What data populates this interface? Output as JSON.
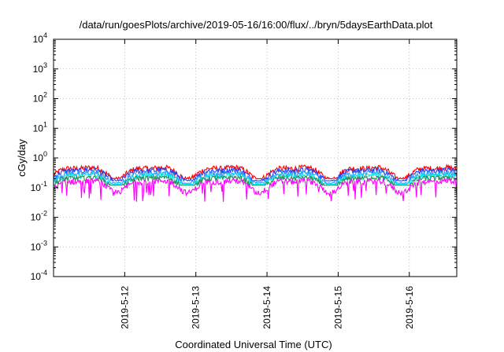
{
  "chart_data": {
    "type": "line",
    "title": "/data/run/goesPlots/archive/2019-05-16/16:00/flux/../bryn/5daysEarthData.plot",
    "xlabel": "Coordinated Universal Time (UTC)",
    "ylabel": "cGy/day",
    "yscale": "log",
    "ylim": [
      0.0001,
      10000
    ],
    "xlim": [
      "2019-05-11 00:00",
      "2019-05-16 16:00"
    ],
    "grid": true,
    "legend": "none",
    "y_ticks": [
      {
        "value": 0.0001,
        "base": "10",
        "exp": "-4"
      },
      {
        "value": 0.001,
        "base": "10",
        "exp": "-3"
      },
      {
        "value": 0.01,
        "base": "10",
        "exp": "-2"
      },
      {
        "value": 0.1,
        "base": "10",
        "exp": "-1"
      },
      {
        "value": 1,
        "base": "10",
        "exp": "0"
      },
      {
        "value": 10,
        "base": "10",
        "exp": "1"
      },
      {
        "value": 100,
        "base": "10",
        "exp": "2"
      },
      {
        "value": 1000,
        "base": "10",
        "exp": "3"
      },
      {
        "value": 10000,
        "base": "10",
        "exp": "4"
      }
    ],
    "x_ticks": [
      {
        "label": "2019-5-12",
        "day": 1
      },
      {
        "label": "2019-5-13",
        "day": 2
      },
      {
        "label": "2019-5-14",
        "day": 3
      },
      {
        "label": "2019-5-15",
        "day": 4
      },
      {
        "label": "2019-5-16",
        "day": 5
      }
    ],
    "series": [
      {
        "color": "#ff0000",
        "typical": 0.36,
        "min": 0.2,
        "max": 0.6
      },
      {
        "color": "#1f3fff",
        "typical": 0.3,
        "min": 0.17,
        "max": 0.5
      },
      {
        "color": "#2a9df4",
        "typical": 0.24,
        "min": 0.14,
        "max": 0.4
      },
      {
        "color": "#00e5e5",
        "typical": 0.2,
        "min": 0.13,
        "max": 0.3
      },
      {
        "color": "#2e8b57",
        "typical": 0.17,
        "min": 0.12,
        "max": 0.24
      },
      {
        "color": "#ff00ff",
        "typical": 0.13,
        "min": 0.02,
        "max": 0.2
      }
    ]
  }
}
